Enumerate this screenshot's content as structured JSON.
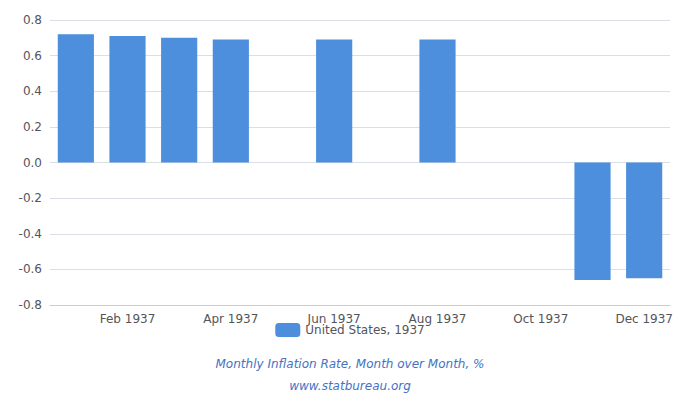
{
  "chart_data": {
    "type": "bar",
    "categories": [
      null,
      "Feb 1937",
      null,
      "Apr 1937",
      null,
      "Jun 1937",
      null,
      "Aug 1937",
      null,
      "Oct 1937",
      null,
      "Dec 1937"
    ],
    "series": [
      {
        "name": "United States, 1937",
        "color": "#4d8fdc",
        "values": [
          0.72,
          0.71,
          0.7,
          0.69,
          null,
          0.69,
          null,
          0.69,
          null,
          null,
          -0.66,
          -0.65
        ]
      }
    ],
    "ylim": [
      -0.8,
      0.8
    ],
    "yticks": [
      -0.8,
      -0.6,
      -0.4,
      -0.2,
      {
        "value": 0,
        "label": "0.0"
      },
      0.2,
      0.4,
      0.6,
      0.8
    ],
    "grid": true,
    "legend": "bottom",
    "annotations": [
      "Monthly Inflation Rate, Month over Month, %",
      "www.statbureau.org"
    ]
  }
}
